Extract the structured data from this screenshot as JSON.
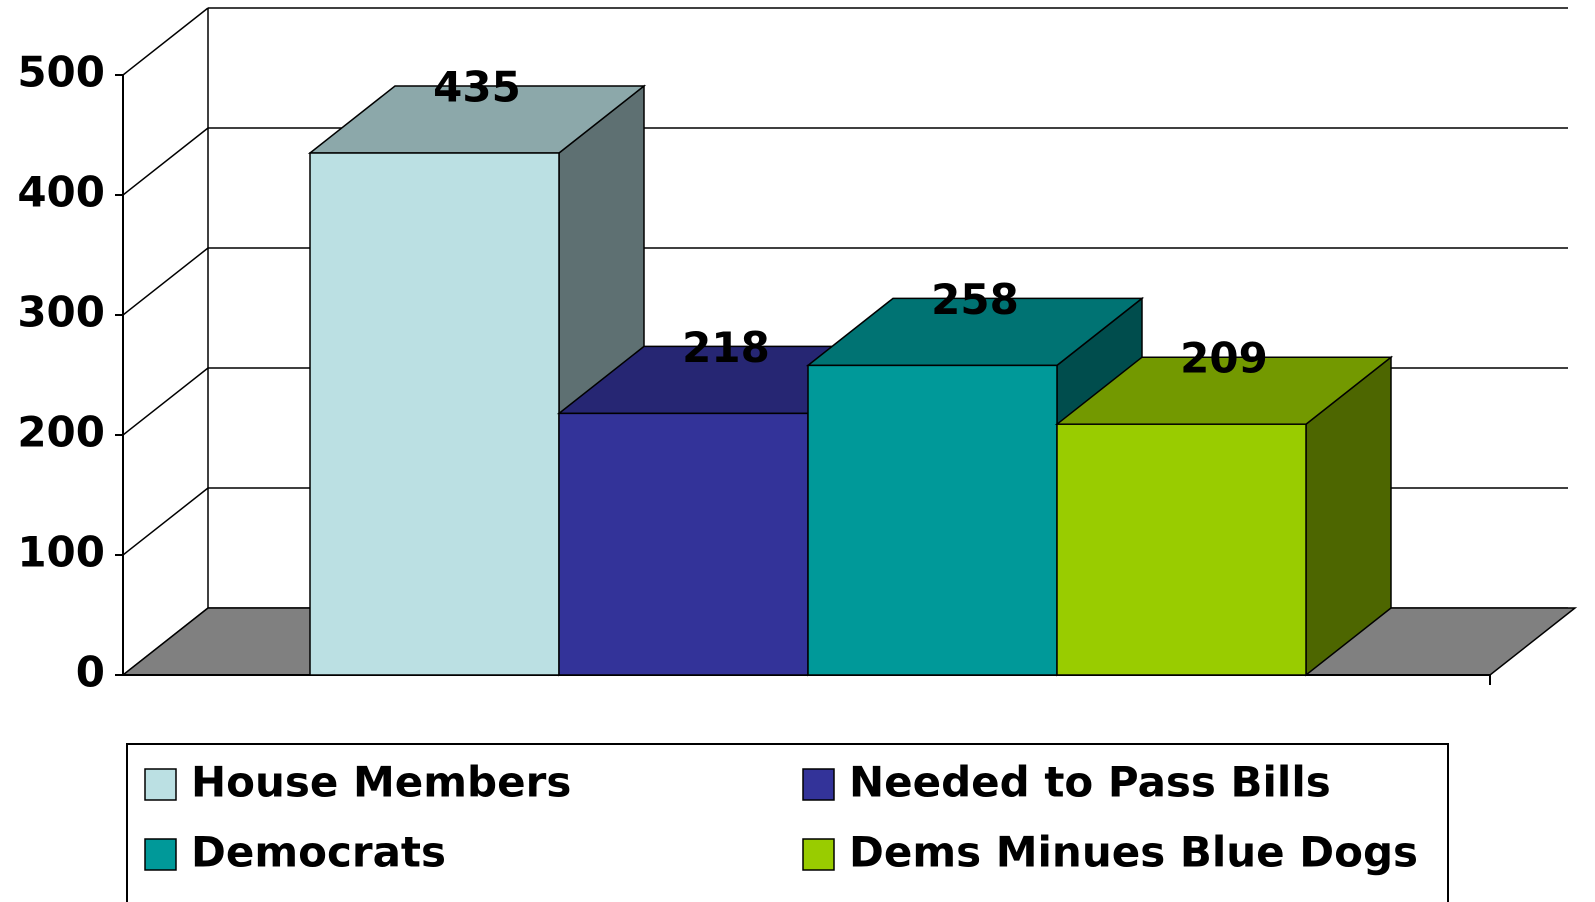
{
  "chart_data": {
    "type": "bar",
    "series": [
      {
        "name": "House Members",
        "color": "#bbe0e3",
        "values": [
          435
        ]
      },
      {
        "name": "Needed to Pass Bills",
        "color": "#333399",
        "values": [
          218
        ]
      },
      {
        "name": "Democrats",
        "color": "#009999",
        "values": [
          258
        ]
      },
      {
        "name": "Dems Minues Blue Dogs",
        "color": "#99cc00",
        "values": [
          209
        ]
      }
    ],
    "ylim": [
      0,
      500
    ],
    "yticks": [
      0,
      100,
      200,
      300,
      400,
      500
    ],
    "grid": true,
    "legend": "bottom"
  }
}
